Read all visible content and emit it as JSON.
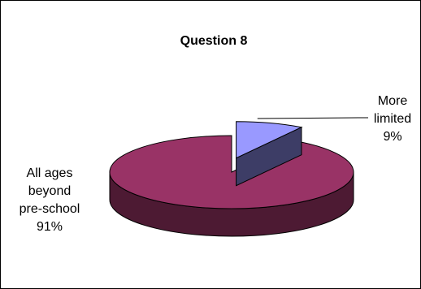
{
  "chart_data": {
    "type": "pie",
    "style": "3d",
    "title": "Question 8",
    "slices": [
      {
        "name": "More limited",
        "value": 9,
        "label_lines": [
          "More",
          "limited",
          "9%"
        ],
        "color": "#9999ff",
        "side_color": "#3d3d66",
        "exploded": true
      },
      {
        "name": "All ages beyond pre-school",
        "value": 91,
        "label_lines": [
          "All ages",
          "beyond",
          "pre-school",
          "91%"
        ],
        "color": "#993366",
        "side_color": "#4d1a33",
        "exploded": false
      }
    ],
    "legend": "none",
    "grid": false
  }
}
